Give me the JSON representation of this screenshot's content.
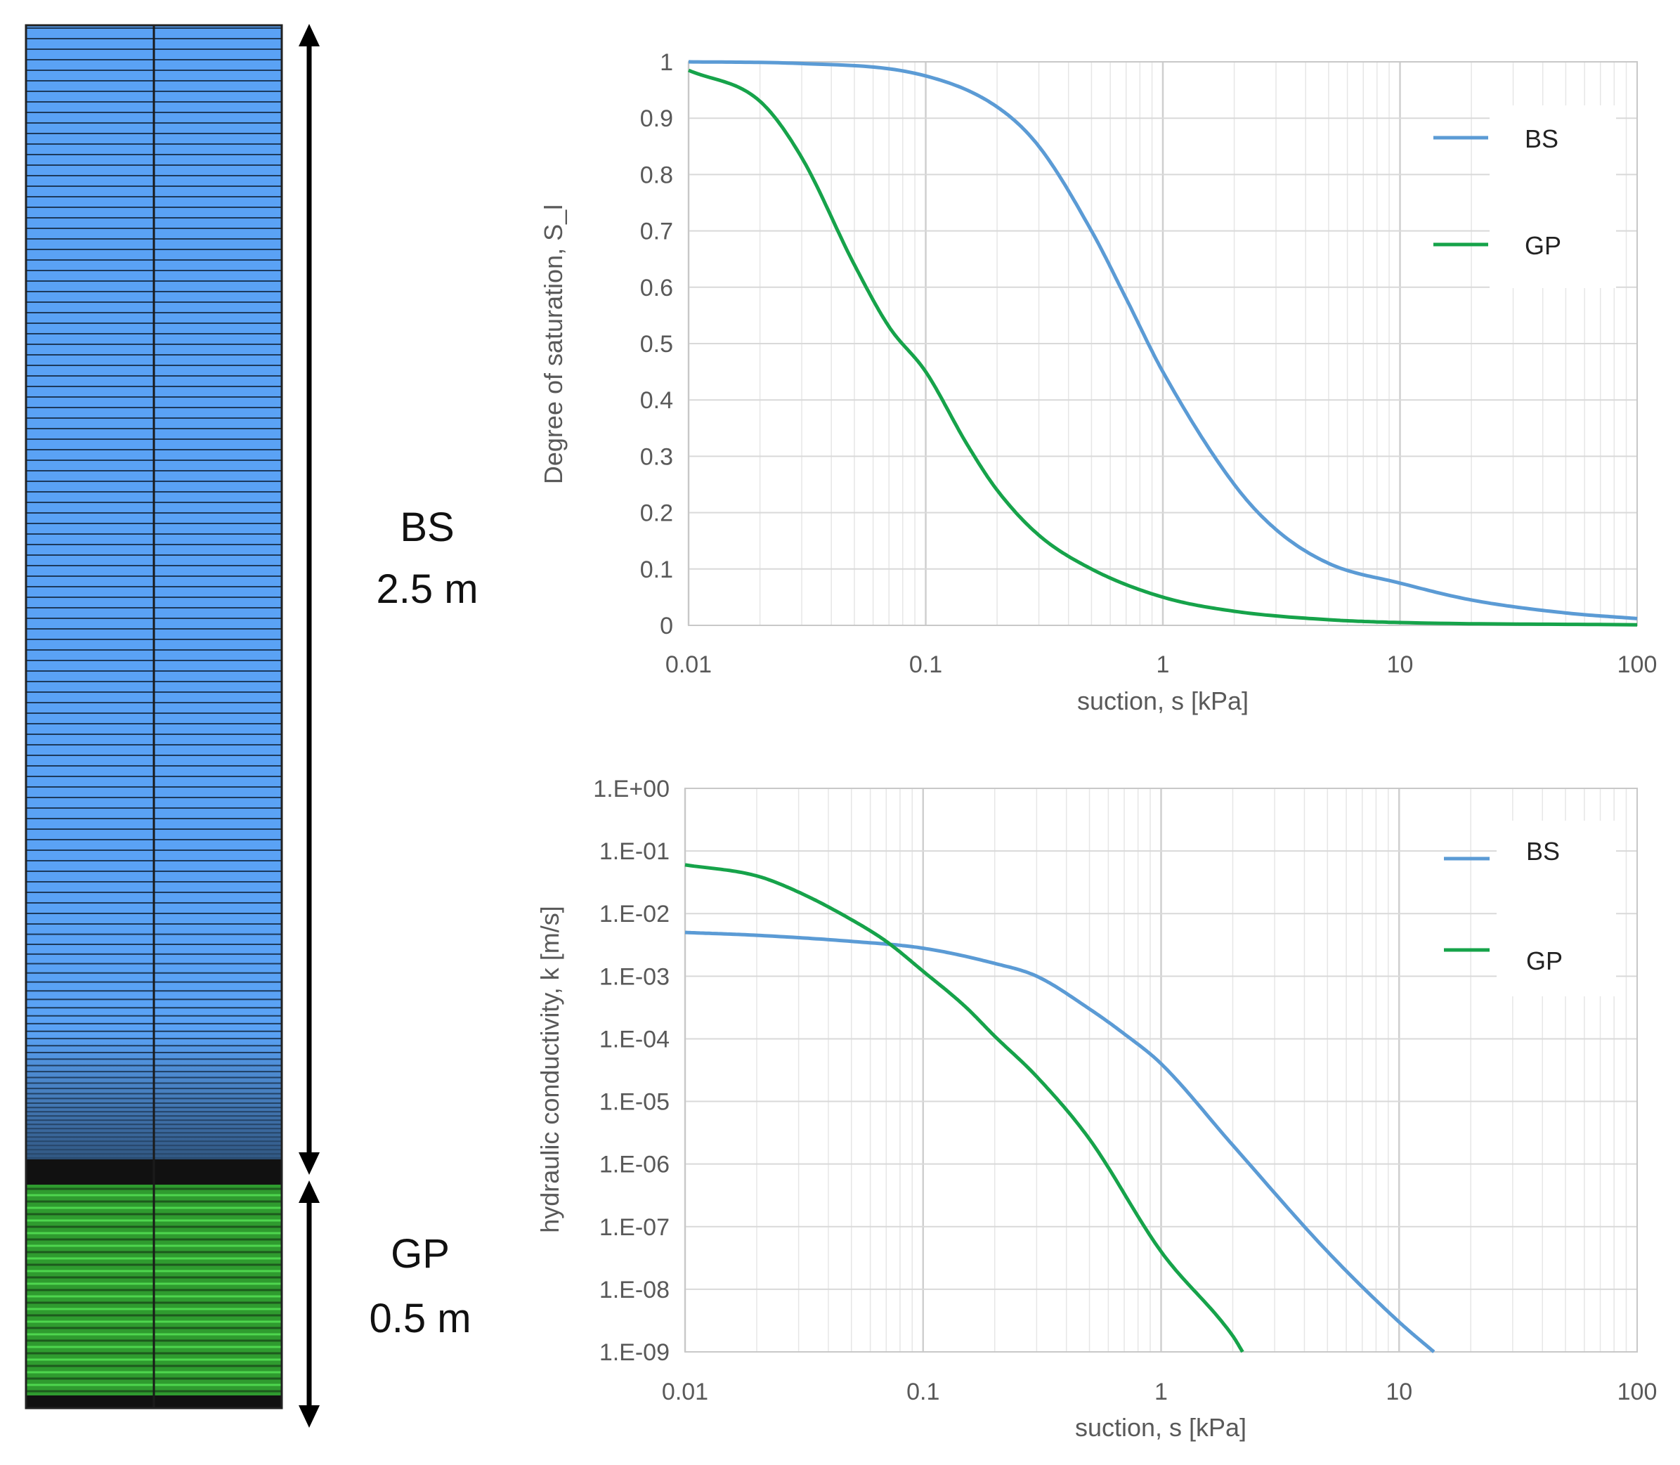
{
  "column": {
    "layers": [
      {
        "name": "BS",
        "thickness": "2.5 m",
        "color": "#5aa2f5"
      },
      {
        "name": "GP",
        "thickness": "0.5 m",
        "color": "#37c337"
      }
    ]
  },
  "colors": {
    "BS": "#5b9bd5",
    "GP": "#16a34a"
  },
  "chart_data": [
    {
      "type": "line",
      "title": "",
      "xlabel": "suction, s [kPa]",
      "ylabel": "Degree of saturation, S_l",
      "x_scale": "log",
      "xlim": [
        0.01,
        100
      ],
      "ylim": [
        0,
        1
      ],
      "x_tick_labels": [
        "0.01",
        "0.1",
        "1",
        "10",
        "100"
      ],
      "y_tick_labels": [
        "0",
        "0.1",
        "0.2",
        "0.3",
        "0.4",
        "0.5",
        "0.6",
        "0.7",
        "0.8",
        "0.9",
        "1"
      ],
      "grid": true,
      "legend": "right",
      "series": [
        {
          "name": "BS",
          "x": [
            0.01,
            0.03,
            0.1,
            0.2,
            0.3,
            0.5,
            0.7,
            1,
            2,
            3,
            5,
            10,
            20,
            50,
            100
          ],
          "y": [
            1.0,
            0.997,
            0.975,
            0.92,
            0.85,
            0.7,
            0.58,
            0.45,
            0.25,
            0.17,
            0.11,
            0.075,
            0.045,
            0.022,
            0.012
          ]
        },
        {
          "name": "GP",
          "x": [
            0.01,
            0.02,
            0.03,
            0.05,
            0.07,
            0.1,
            0.15,
            0.2,
            0.3,
            0.5,
            1,
            2,
            5,
            10,
            100
          ],
          "y": [
            0.985,
            0.93,
            0.83,
            0.64,
            0.53,
            0.45,
            0.32,
            0.24,
            0.16,
            0.1,
            0.05,
            0.025,
            0.01,
            0.005,
            0.001
          ]
        }
      ]
    },
    {
      "type": "line",
      "title": "",
      "xlabel": "suction, s [kPa]",
      "ylabel": "hydraulic conductivity, k [m/s]",
      "x_scale": "log",
      "y_scale": "log",
      "xlim": [
        0.01,
        100
      ],
      "ylim": [
        1e-09,
        1
      ],
      "x_tick_labels": [
        "0.01",
        "0.1",
        "1",
        "10",
        "100"
      ],
      "y_tick_labels": [
        "1.E-09",
        "1.E-08",
        "1.E-07",
        "1.E-06",
        "1.E-05",
        "1.E-04",
        "1.E-03",
        "1.E-02",
        "1.E-01",
        "1.E+00"
      ],
      "grid": true,
      "legend": "right",
      "series": [
        {
          "name": "BS",
          "x": [
            0.01,
            0.02,
            0.05,
            0.1,
            0.2,
            0.3,
            0.5,
            0.7,
            1,
            2,
            5,
            10,
            14
          ],
          "y": [
            0.005,
            0.0045,
            0.0036,
            0.0028,
            0.0016,
            0.001,
            0.0003,
            0.00012,
            4e-05,
            2e-06,
            4e-08,
            3e-09,
            1e-09
          ]
        },
        {
          "name": "GP",
          "x": [
            0.01,
            0.02,
            0.03,
            0.05,
            0.07,
            0.1,
            0.15,
            0.2,
            0.3,
            0.5,
            1,
            2,
            2.2
          ],
          "y": [
            0.06,
            0.04,
            0.022,
            0.008,
            0.0036,
            0.0012,
            0.00033,
            0.00011,
            2.5e-05,
            2.5e-06,
            4e-08,
            1.8e-09,
            1e-09
          ]
        }
      ]
    }
  ]
}
